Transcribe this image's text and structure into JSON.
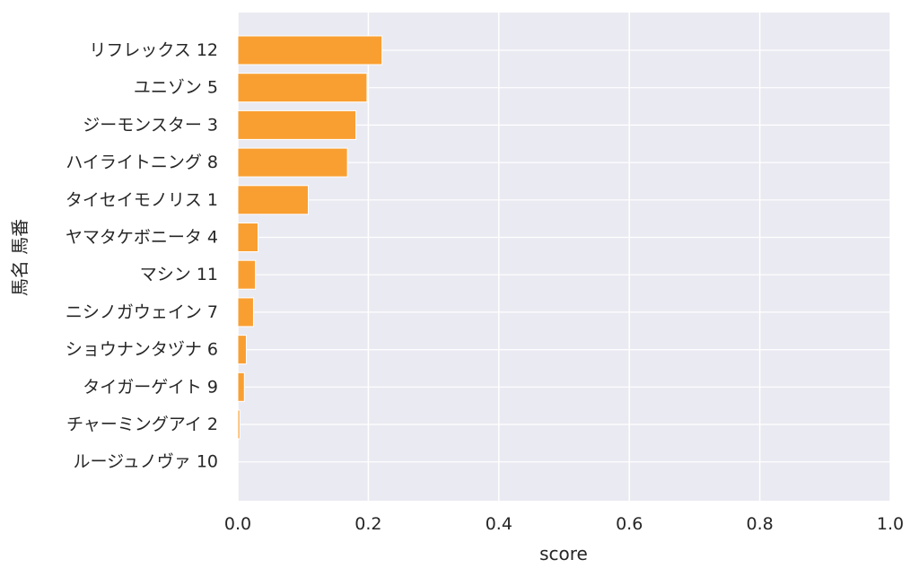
{
  "chart_data": {
    "type": "bar",
    "orientation": "horizontal",
    "categories": [
      "リフレックス 12",
      "ユニゾン 5",
      "ジーモンスター 3",
      "ハイライトニング 8",
      "タイセイモノリス 1",
      "ヤマタケボニータ 4",
      "マシン 11",
      "ニシノガウェイン 7",
      "ショウナンタヅナ 6",
      "タイガーゲイト 9",
      "チャーミングアイ 2",
      "ルージュノヴァ 10"
    ],
    "values": [
      0.221,
      0.198,
      0.181,
      0.168,
      0.108,
      0.031,
      0.027,
      0.024,
      0.013,
      0.01,
      0.003,
      0.0
    ],
    "xlabel": "score",
    "ylabel": "馬名 馬番",
    "xlim": [
      0,
      1.0
    ],
    "xticks": [
      "0.0",
      "0.2",
      "0.4",
      "0.6",
      "0.8",
      "1.0"
    ],
    "grid": true,
    "colors": {
      "bar": "#f99f32",
      "bar_edge": "#ffffff",
      "plot_background": "#eaeaf2",
      "grid": "#ffffff",
      "text": "#262626"
    }
  }
}
